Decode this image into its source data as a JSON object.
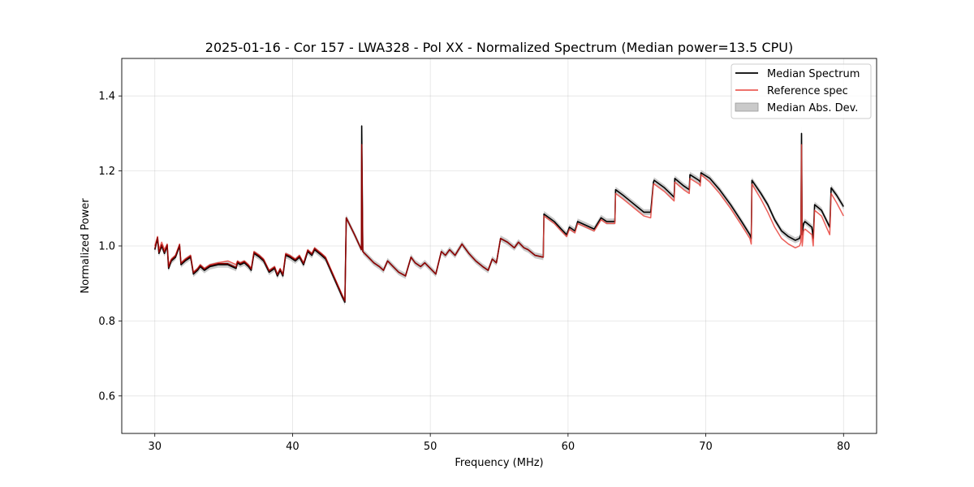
{
  "chart_data": {
    "type": "line",
    "title": "2025-01-16 - Cor 157 - LWA328 - Pol XX - Normalized Spectrum (Median power=13.5 CPU)",
    "xlabel": "Frequency (MHz)",
    "ylabel": "Normalized Power",
    "xlim": [
      27.6,
      82.4
    ],
    "ylim": [
      0.5,
      1.5
    ],
    "xticks": [
      30,
      40,
      50,
      60,
      70,
      80
    ],
    "yticks": [
      0.6,
      0.8,
      1.0,
      1.2,
      1.4
    ],
    "xtick_labels": [
      "30",
      "40",
      "50",
      "60",
      "70",
      "80"
    ],
    "ytick_labels": [
      "0.6",
      "0.8",
      "1.0",
      "1.2",
      "1.4"
    ],
    "grid": true,
    "legend_position": "top-right",
    "colors": {
      "median": "#000000",
      "reference": "#e8433c",
      "reference_overlap": "#8b0000",
      "mad_band": "#b3b3b3"
    },
    "series": [
      {
        "name": "Median Spectrum",
        "style": "line",
        "x": [
          30.0,
          30.2,
          30.3,
          30.5,
          30.7,
          30.9,
          31.0,
          31.2,
          31.5,
          31.8,
          31.9,
          32.2,
          32.6,
          32.8,
          33.1,
          33.3,
          33.6,
          34.0,
          34.6,
          35.3,
          35.9,
          36.0,
          36.2,
          36.5,
          36.8,
          37.0,
          37.2,
          37.6,
          37.9,
          38.3,
          38.7,
          38.9,
          39.1,
          39.3,
          39.5,
          39.8,
          40.2,
          40.5,
          40.8,
          41.1,
          41.4,
          41.6,
          42.1,
          42.4,
          42.7,
          43.0,
          43.3,
          43.6,
          43.8,
          43.9,
          44.5,
          45.0,
          45.02,
          45.1,
          45.5,
          45.9,
          46.3,
          46.6,
          46.9,
          47.3,
          47.7,
          48.2,
          48.6,
          48.9,
          49.3,
          49.6,
          50.0,
          50.4,
          50.8,
          51.1,
          51.4,
          51.8,
          52.3,
          52.8,
          53.3,
          53.8,
          54.2,
          54.5,
          54.8,
          55.1,
          55.6,
          56.1,
          56.4,
          56.8,
          57.1,
          57.6,
          58.2,
          58.25,
          59.0,
          59.5,
          59.9,
          60.1,
          60.5,
          60.7,
          61.3,
          61.9,
          62.4,
          62.8,
          63.4,
          63.45,
          64.0,
          64.5,
          65.0,
          65.5,
          66.0,
          66.2,
          66.25,
          67.0,
          67.7,
          67.75,
          68.4,
          68.8,
          68.85,
          69.5,
          69.6,
          69.65,
          70.3,
          71.0,
          71.8,
          72.6,
          73.2,
          73.3,
          73.35,
          74.0,
          74.5,
          75.0,
          75.5,
          76.0,
          76.5,
          76.8,
          76.9,
          76.95,
          77.0,
          77.1,
          77.2,
          77.7,
          77.8,
          77.9,
          78.4,
          79.0,
          79.1,
          79.5,
          80.0
        ],
        "y": [
          0.99,
          1.02,
          0.98,
          1.0,
          0.98,
          1.0,
          0.94,
          0.96,
          0.97,
          1.0,
          0.95,
          0.96,
          0.97,
          0.925,
          0.935,
          0.945,
          0.935,
          0.945,
          0.95,
          0.95,
          0.94,
          0.955,
          0.95,
          0.955,
          0.945,
          0.935,
          0.98,
          0.97,
          0.96,
          0.93,
          0.94,
          0.92,
          0.935,
          0.92,
          0.975,
          0.97,
          0.96,
          0.97,
          0.95,
          0.985,
          0.975,
          0.99,
          0.975,
          0.965,
          0.94,
          0.915,
          0.89,
          0.865,
          0.85,
          1.075,
          1.03,
          0.99,
          1.32,
          0.985,
          0.97,
          0.955,
          0.945,
          0.935,
          0.96,
          0.945,
          0.93,
          0.92,
          0.97,
          0.955,
          0.945,
          0.955,
          0.94,
          0.925,
          0.985,
          0.975,
          0.99,
          0.975,
          1.005,
          0.98,
          0.96,
          0.945,
          0.935,
          0.965,
          0.955,
          1.02,
          1.01,
          0.995,
          1.01,
          0.995,
          0.99,
          0.975,
          0.97,
          1.085,
          1.065,
          1.045,
          1.03,
          1.05,
          1.04,
          1.065,
          1.055,
          1.045,
          1.075,
          1.065,
          1.065,
          1.15,
          1.135,
          1.12,
          1.105,
          1.09,
          1.09,
          1.17,
          1.175,
          1.155,
          1.13,
          1.18,
          1.16,
          1.15,
          1.19,
          1.175,
          1.17,
          1.195,
          1.18,
          1.15,
          1.11,
          1.065,
          1.03,
          1.02,
          1.175,
          1.14,
          1.11,
          1.07,
          1.04,
          1.025,
          1.015,
          1.02,
          1.03,
          1.3,
          1.03,
          1.06,
          1.065,
          1.05,
          1.02,
          1.11,
          1.095,
          1.05,
          1.155,
          1.135,
          1.105
        ]
      },
      {
        "name": "Reference spec",
        "style": "line",
        "x": [
          30.0,
          30.2,
          30.3,
          30.5,
          30.7,
          30.9,
          31.0,
          31.2,
          31.5,
          31.8,
          31.9,
          32.2,
          32.6,
          32.8,
          33.1,
          33.3,
          33.6,
          34.0,
          34.6,
          35.3,
          35.9,
          36.0,
          36.2,
          36.5,
          36.8,
          37.0,
          37.2,
          37.6,
          37.9,
          38.3,
          38.7,
          38.9,
          39.1,
          39.3,
          39.5,
          39.8,
          40.2,
          40.5,
          40.8,
          41.1,
          41.4,
          41.6,
          42.1,
          42.4,
          42.7,
          43.0,
          43.3,
          43.6,
          43.8,
          43.9,
          44.5,
          45.0,
          45.02,
          45.1,
          45.5,
          45.9,
          46.3,
          46.6,
          46.9,
          47.3,
          47.7,
          48.2,
          48.6,
          48.9,
          49.3,
          49.6,
          50.0,
          50.4,
          50.8,
          51.1,
          51.4,
          51.8,
          52.3,
          52.8,
          53.3,
          53.8,
          54.2,
          54.5,
          54.8,
          55.1,
          55.6,
          56.1,
          56.4,
          56.8,
          57.1,
          57.6,
          58.2,
          58.25,
          59.0,
          59.5,
          59.9,
          60.1,
          60.5,
          60.7,
          61.3,
          61.9,
          62.4,
          62.8,
          63.4,
          63.45,
          64.0,
          64.5,
          65.0,
          65.5,
          66.0,
          66.2,
          66.25,
          67.0,
          67.7,
          67.75,
          68.4,
          68.8,
          68.85,
          69.5,
          69.6,
          69.65,
          70.3,
          71.0,
          71.8,
          72.6,
          73.2,
          73.3,
          73.35,
          74.0,
          74.5,
          75.0,
          75.5,
          76.0,
          76.5,
          76.8,
          76.9,
          76.95,
          77.0,
          77.1,
          77.2,
          77.7,
          77.8,
          77.9,
          78.4,
          79.0,
          79.1,
          79.5,
          80.0
        ],
        "y": [
          1.0,
          1.025,
          0.99,
          1.01,
          0.99,
          1.005,
          0.95,
          0.965,
          0.975,
          1.005,
          0.955,
          0.965,
          0.975,
          0.93,
          0.94,
          0.95,
          0.94,
          0.95,
          0.955,
          0.96,
          0.95,
          0.96,
          0.955,
          0.96,
          0.95,
          0.94,
          0.985,
          0.975,
          0.965,
          0.935,
          0.945,
          0.925,
          0.94,
          0.925,
          0.98,
          0.975,
          0.965,
          0.975,
          0.955,
          0.99,
          0.98,
          0.995,
          0.98,
          0.97,
          0.945,
          0.92,
          0.895,
          0.87,
          0.855,
          1.075,
          1.03,
          0.99,
          1.27,
          0.985,
          0.97,
          0.955,
          0.945,
          0.935,
          0.96,
          0.945,
          0.93,
          0.92,
          0.97,
          0.955,
          0.945,
          0.955,
          0.94,
          0.925,
          0.985,
          0.975,
          0.99,
          0.975,
          1.005,
          0.98,
          0.96,
          0.945,
          0.935,
          0.965,
          0.955,
          1.02,
          1.01,
          0.995,
          1.01,
          0.995,
          0.99,
          0.975,
          0.97,
          1.08,
          1.06,
          1.04,
          1.025,
          1.045,
          1.035,
          1.06,
          1.05,
          1.04,
          1.07,
          1.06,
          1.06,
          1.14,
          1.125,
          1.11,
          1.095,
          1.08,
          1.075,
          1.165,
          1.165,
          1.145,
          1.12,
          1.17,
          1.15,
          1.14,
          1.18,
          1.165,
          1.16,
          1.19,
          1.17,
          1.14,
          1.1,
          1.055,
          1.02,
          1.005,
          1.165,
          1.125,
          1.09,
          1.05,
          1.02,
          1.005,
          0.995,
          1.0,
          1.01,
          1.27,
          1.0,
          1.04,
          1.045,
          1.03,
          1.0,
          1.095,
          1.08,
          1.03,
          1.14,
          1.115,
          1.08
        ]
      },
      {
        "name": "Median Abs. Dev.",
        "style": "band",
        "x": [
          30.0,
          30.2,
          30.3,
          30.5,
          30.7,
          30.9,
          31.0,
          31.2,
          31.5,
          31.8,
          31.9,
          32.2,
          32.6,
          32.8,
          33.1,
          33.3,
          33.6,
          34.0,
          34.6,
          35.3,
          35.9,
          36.0,
          36.2,
          36.5,
          36.8,
          37.0,
          37.2,
          37.6,
          37.9,
          38.3,
          38.7,
          38.9,
          39.1,
          39.3,
          39.5,
          39.8,
          40.2,
          40.5,
          40.8,
          41.1,
          41.4,
          41.6,
          42.1,
          42.4,
          42.7,
          43.0,
          43.3,
          43.6,
          43.8,
          43.9,
          44.5,
          45.0,
          45.02,
          45.1,
          45.5,
          45.9,
          46.3,
          46.6,
          46.9,
          47.3,
          47.7,
          48.2,
          48.6,
          48.9,
          49.3,
          49.6,
          50.0,
          50.4,
          50.8,
          51.1,
          51.4,
          51.8,
          52.3,
          52.8,
          53.3,
          53.8,
          54.2,
          54.5,
          54.8,
          55.1,
          55.6,
          56.1,
          56.4,
          56.8,
          57.1,
          57.6,
          58.2,
          58.25,
          59.0,
          59.5,
          59.9,
          60.1,
          60.5,
          60.7,
          61.3,
          61.9,
          62.4,
          62.8,
          63.4,
          63.45,
          64.0,
          64.5,
          65.0,
          65.5,
          66.0,
          66.2,
          66.25,
          67.0,
          67.7,
          67.75,
          68.4,
          68.8,
          68.85,
          69.5,
          69.6,
          69.65,
          70.3,
          71.0,
          71.8,
          72.6,
          73.2,
          73.3,
          73.35,
          74.0,
          74.5,
          75.0,
          75.5,
          76.0,
          76.5,
          76.8,
          76.9,
          76.95,
          77.0,
          77.1,
          77.2,
          77.7,
          77.8,
          77.9,
          78.4,
          79.0,
          79.1,
          79.5,
          80.0
        ],
        "half_width": 0.008,
        "spike_half_width": 0.02
      }
    ]
  }
}
